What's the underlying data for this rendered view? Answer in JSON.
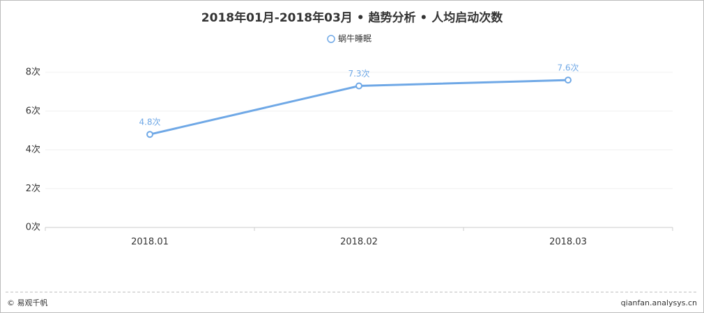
{
  "chart_data": {
    "type": "line",
    "title": "2018年01月-2018年03月 • 趋势分析 • 人均启动次数",
    "categories": [
      "2018.01",
      "2018.02",
      "2018.03"
    ],
    "series": [
      {
        "name": "蜗牛睡眠",
        "color": "#6fa8e6",
        "values": [
          4.8,
          7.3,
          7.6
        ],
        "value_labels": [
          "4.8次",
          "7.3次",
          "7.6次"
        ]
      }
    ],
    "ylim": [
      0,
      8
    ],
    "yticks": [
      {
        "value": 0,
        "label": "0次"
      },
      {
        "value": 2,
        "label": "2次"
      },
      {
        "value": 4,
        "label": "4次"
      },
      {
        "value": 6,
        "label": "6次"
      },
      {
        "value": 8,
        "label": "8次"
      }
    ],
    "grid": true,
    "legend": "top"
  },
  "footer": {
    "left": "© 易观千帆",
    "right": "qianfan.analysys.cn"
  }
}
